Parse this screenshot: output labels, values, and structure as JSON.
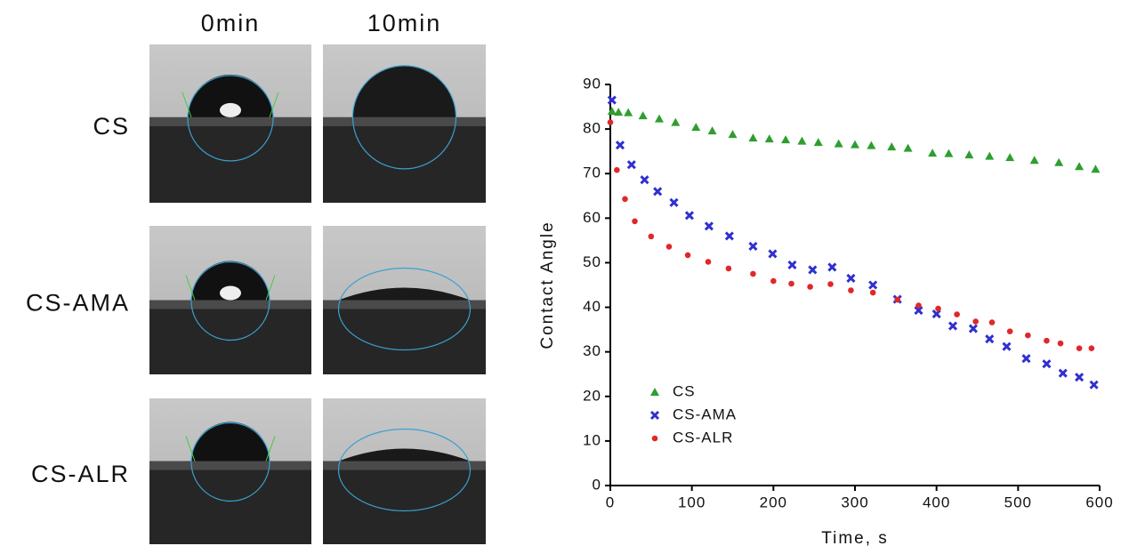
{
  "image_panel": {
    "column_labels": [
      "0min",
      "10min"
    ],
    "row_labels": [
      "CS",
      "CS-AMA",
      "CS-ALR"
    ]
  },
  "chart_data": {
    "type": "scatter",
    "x_label": "Time, s",
    "y_label": "Contact Angle",
    "xlim": [
      0,
      600
    ],
    "xticks": [
      0,
      100,
      200,
      300,
      400,
      500,
      600
    ],
    "ylim": [
      0,
      90
    ],
    "yticks": [
      0,
      10,
      20,
      30,
      40,
      50,
      60,
      70,
      80,
      90
    ],
    "legend": "lower-left",
    "series": [
      {
        "name": "CS",
        "color": "#2e9e2e",
        "marker": "triangle",
        "x": [
          2,
          10,
          22,
          40,
          60,
          80,
          105,
          125,
          150,
          175,
          195,
          215,
          235,
          255,
          280,
          300,
          320,
          345,
          365,
          395,
          415,
          440,
          465,
          490,
          520,
          550,
          575,
          595
        ],
        "values": [
          84,
          83.8,
          83.7,
          83,
          82.3,
          81.5,
          80.4,
          79.6,
          78.8,
          78,
          77.8,
          77.6,
          77.3,
          77,
          76.7,
          76.5,
          76.3,
          76,
          75.7,
          74.6,
          74.5,
          74.2,
          73.9,
          73.6,
          73,
          72.5,
          71.6,
          71
        ]
      },
      {
        "name": "CS-AMA",
        "color": "#3030d0",
        "marker": "cross",
        "x": [
          2,
          12,
          26,
          42,
          58,
          78,
          97,
          121,
          146,
          175,
          199,
          223,
          248,
          272,
          295,
          322,
          352,
          378,
          400,
          420,
          445,
          465,
          486,
          510,
          535,
          555,
          575,
          593
        ],
        "values": [
          86.5,
          76.4,
          72,
          68.6,
          66,
          63.5,
          60.6,
          58.2,
          56,
          53.7,
          52,
          49.5,
          48.4,
          49,
          46.5,
          45,
          41.8,
          39.3,
          38.5,
          35.8,
          35.2,
          32.9,
          31.2,
          28.5,
          27.3,
          25.2,
          24.3,
          22.6
        ]
      },
      {
        "name": "CS-ALR",
        "color": "#e02828",
        "marker": "circle",
        "x": [
          0,
          8,
          18,
          30,
          50,
          72,
          95,
          120,
          145,
          175,
          200,
          222,
          245,
          270,
          295,
          322,
          352,
          378,
          402,
          425,
          448,
          468,
          490,
          512,
          535,
          552,
          575,
          590
        ],
        "values": [
          81.5,
          70.8,
          64.3,
          59.3,
          55.9,
          53.6,
          51.7,
          50.2,
          48.7,
          47.5,
          45.9,
          45.3,
          44.6,
          45.2,
          43.8,
          43.3,
          41.7,
          40.4,
          39.7,
          38.4,
          36.8,
          36.6,
          34.6,
          33.7,
          32.5,
          31.9,
          30.8,
          30.8
        ]
      }
    ]
  }
}
